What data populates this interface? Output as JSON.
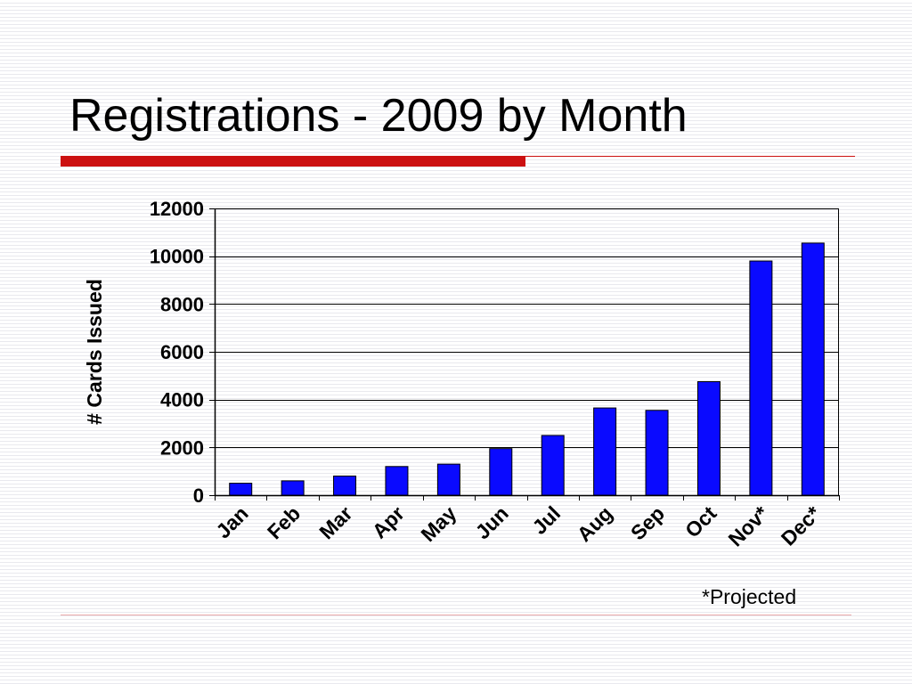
{
  "slide": {
    "title": "Registrations - 2009 by Month",
    "footnote": "*Projected"
  },
  "colors": {
    "bar": "#0a0aff",
    "accent_rule": "#cc1111",
    "grid": "#000000"
  },
  "chart_data": {
    "type": "bar",
    "title": "",
    "xlabel": "",
    "ylabel": "# Cards Issued",
    "categories": [
      "Jan",
      "Feb",
      "Mar",
      "Apr",
      "May",
      "Jun",
      "Jul",
      "Aug",
      "Sep",
      "Oct",
      "Nov*",
      "Dec*"
    ],
    "values": [
      500,
      600,
      800,
      1200,
      1300,
      1950,
      2500,
      3650,
      3550,
      4750,
      9800,
      10550
    ],
    "ylim": [
      0,
      12000
    ],
    "yticks": [
      0,
      2000,
      4000,
      6000,
      8000,
      10000,
      12000
    ],
    "grid": true,
    "legend": "none"
  }
}
